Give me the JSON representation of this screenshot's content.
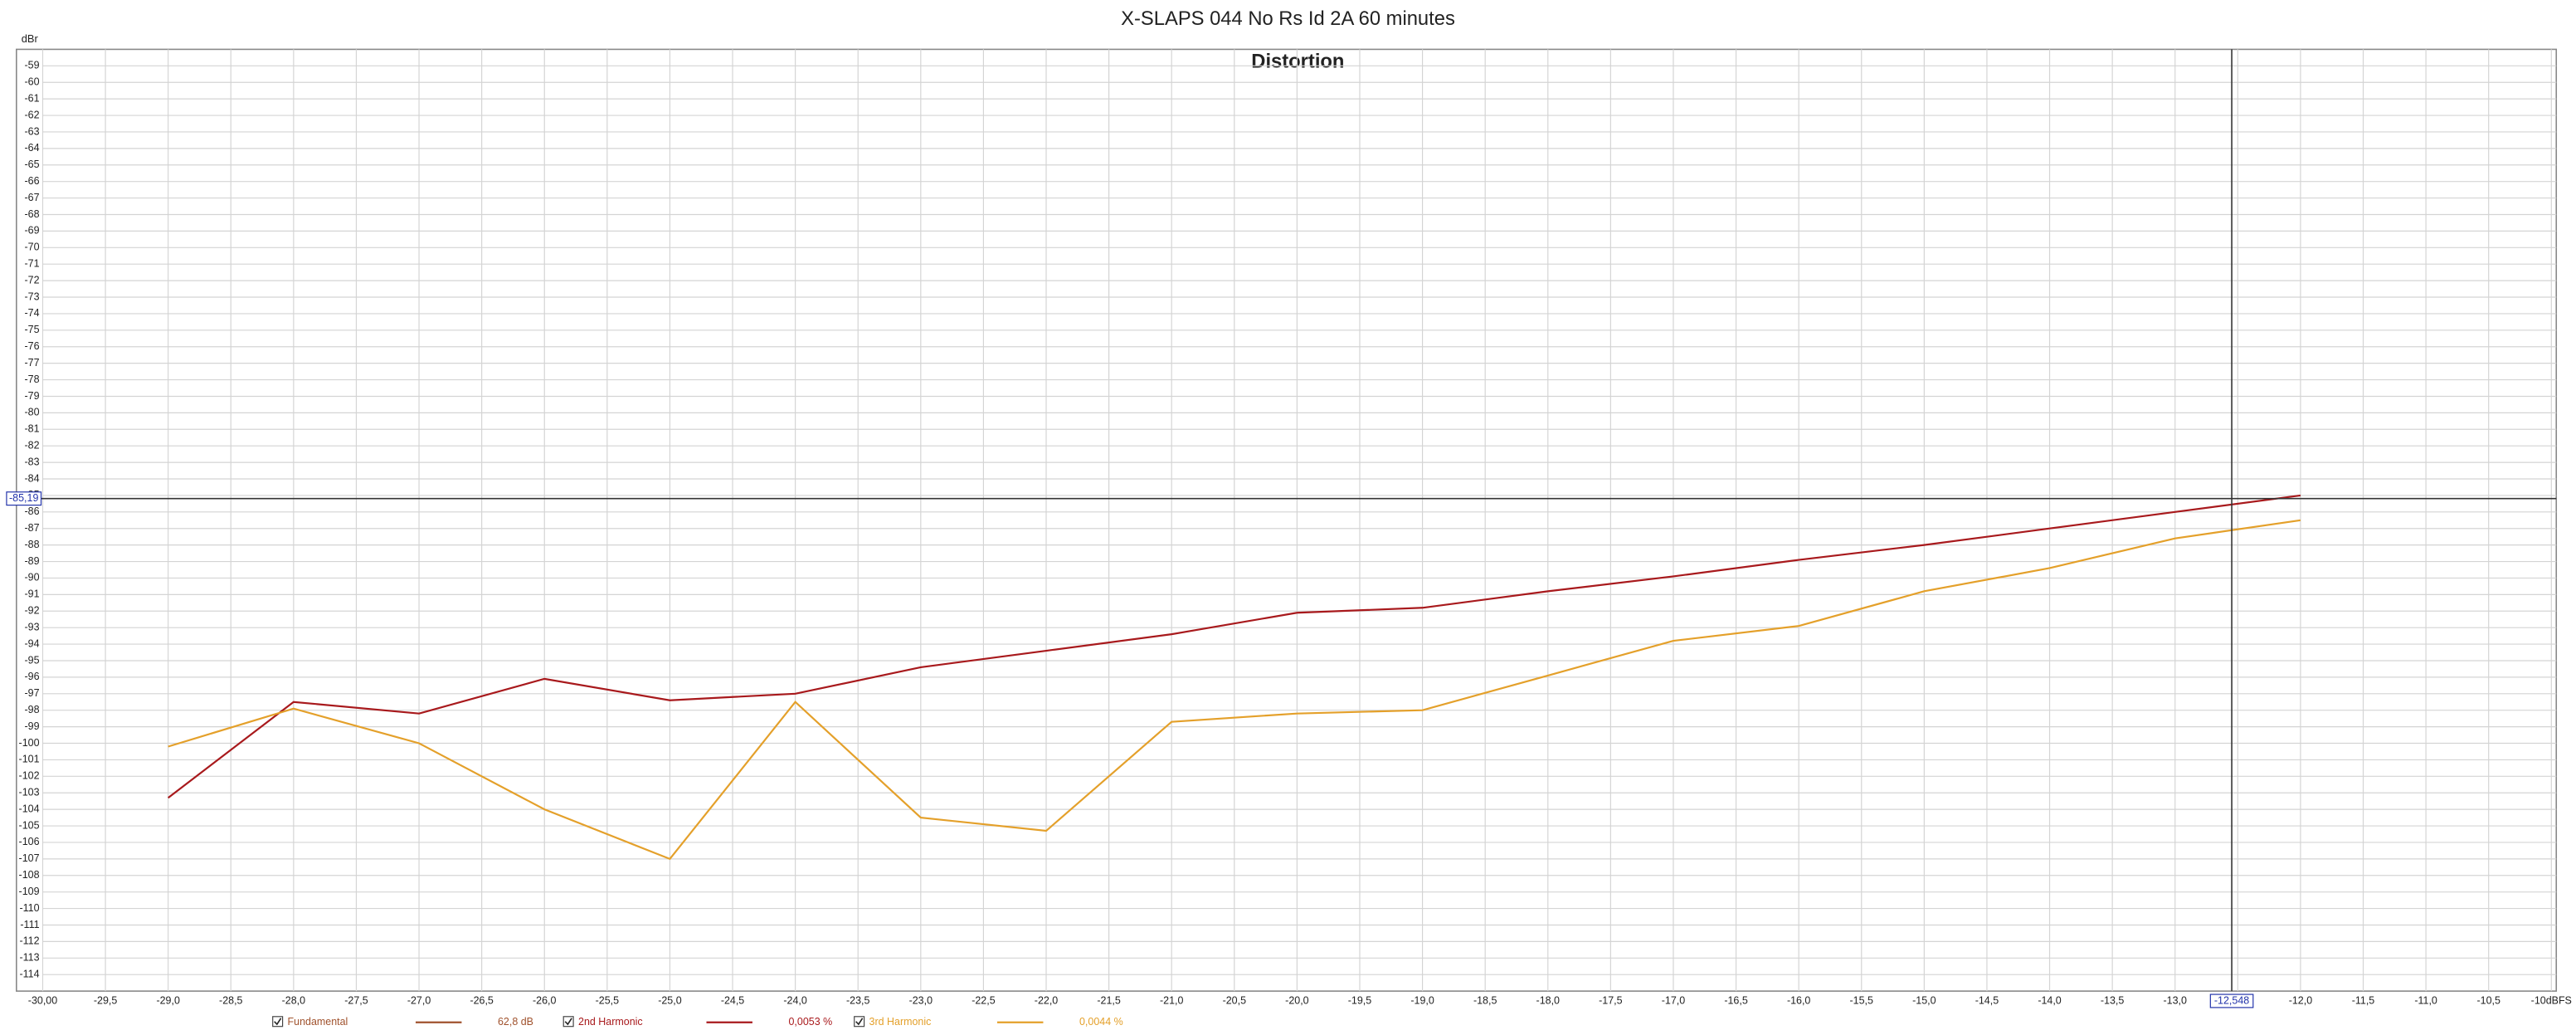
{
  "chart_data": {
    "type": "line",
    "title": "X-SLAPS 044 No Rs Id 2A 60 minutes",
    "subtitle": "Distortion",
    "y_label": "dBr",
    "grid": true,
    "xlim": [
      -30,
      -10
    ],
    "ylim": [
      -115,
      -58
    ],
    "xticks": [
      {
        "value": -30,
        "label": "-30,00"
      },
      {
        "value": -29.5,
        "label": "-29,5"
      },
      {
        "value": -29,
        "label": "-29,0"
      },
      {
        "value": -28.5,
        "label": "-28,5"
      },
      {
        "value": -28,
        "label": "-28,0"
      },
      {
        "value": -27.5,
        "label": "-27,5"
      },
      {
        "value": -27,
        "label": "-27,0"
      },
      {
        "value": -26.5,
        "label": "-26,5"
      },
      {
        "value": -26,
        "label": "-26,0"
      },
      {
        "value": -25.5,
        "label": "-25,5"
      },
      {
        "value": -25,
        "label": "-25,0"
      },
      {
        "value": -24.5,
        "label": "-24,5"
      },
      {
        "value": -24,
        "label": "-24,0"
      },
      {
        "value": -23.5,
        "label": "-23,5"
      },
      {
        "value": -23,
        "label": "-23,0"
      },
      {
        "value": -22.5,
        "label": "-22,5"
      },
      {
        "value": -22,
        "label": "-22,0"
      },
      {
        "value": -21.5,
        "label": "-21,5"
      },
      {
        "value": -21,
        "label": "-21,0"
      },
      {
        "value": -20.5,
        "label": "-20,5"
      },
      {
        "value": -20,
        "label": "-20,0"
      },
      {
        "value": -19.5,
        "label": "-19,5"
      },
      {
        "value": -19,
        "label": "-19,0"
      },
      {
        "value": -18.5,
        "label": "-18,5"
      },
      {
        "value": -18,
        "label": "-18,0"
      },
      {
        "value": -17.5,
        "label": "-17,5"
      },
      {
        "value": -17,
        "label": "-17,0"
      },
      {
        "value": -16.5,
        "label": "-16,5"
      },
      {
        "value": -16,
        "label": "-16,0"
      },
      {
        "value": -15.5,
        "label": "-15,5"
      },
      {
        "value": -15,
        "label": "-15,0"
      },
      {
        "value": -14.5,
        "label": "-14,5"
      },
      {
        "value": -14,
        "label": "-14,0"
      },
      {
        "value": -13.5,
        "label": "-13,5"
      },
      {
        "value": -13,
        "label": "-13,0"
      },
      {
        "value": -12.5,
        "label": "-12,5"
      },
      {
        "value": -12,
        "label": "-12,0"
      },
      {
        "value": -11.5,
        "label": "-11,5"
      },
      {
        "value": -11,
        "label": "-11,0"
      },
      {
        "value": -10.5,
        "label": "-10,5"
      },
      {
        "value": -10,
        "label": "-10dBFS"
      }
    ],
    "yticks": [
      -59,
      -60,
      -61,
      -62,
      -63,
      -64,
      -65,
      -66,
      -67,
      -68,
      -69,
      -70,
      -71,
      -72,
      -73,
      -74,
      -75,
      -76,
      -77,
      -78,
      -79,
      -80,
      -81,
      -82,
      -83,
      -84,
      -85,
      -86,
      -87,
      -88,
      -89,
      -90,
      -91,
      -92,
      -93,
      -94,
      -95,
      -96,
      -97,
      -98,
      -99,
      -100,
      -101,
      -102,
      -103,
      -104,
      -105,
      -106,
      -107,
      -108,
      -109,
      -110,
      -111,
      -112,
      -113,
      -114
    ],
    "x": [
      -29,
      -28,
      -27,
      -26,
      -25,
      -24,
      -23,
      -22,
      -21,
      -20,
      -19,
      -18,
      -17,
      -16,
      -15,
      -14,
      -13,
      -12
    ],
    "series": [
      {
        "name": "Fundamental",
        "color": "#a0522d",
        "readout": "62,8 dB",
        "values": [
          null,
          null,
          null,
          null,
          null,
          null,
          null,
          null,
          null,
          null,
          null,
          null,
          null,
          null,
          null,
          null,
          null,
          null
        ]
      },
      {
        "name": "2nd Harmonic",
        "color": "#a8191c",
        "readout": "0,0053 %",
        "values": [
          -103.3,
          -97.5,
          -98.2,
          -96.1,
          -97.4,
          -97.0,
          -95.4,
          -94.4,
          -93.4,
          -92.1,
          -91.8,
          -90.8,
          -89.9,
          -88.9,
          -88.0,
          -87.0,
          -86.0,
          -85.0
        ]
      },
      {
        "name": "3rd Harmonic",
        "color": "#e4a02a",
        "readout": "0,0044 %",
        "values": [
          -100.2,
          -97.9,
          -100.0,
          -104.0,
          -107.0,
          -97.5,
          -104.5,
          -105.3,
          -98.7,
          -98.2,
          -98.0,
          -95.9,
          -93.8,
          -92.9,
          -90.8,
          -89.4,
          -87.6,
          -86.5
        ]
      }
    ],
    "cursor": {
      "x": {
        "value": -12.548,
        "label": "-12,548"
      },
      "y": {
        "value": -85.19,
        "label": "-85,19"
      }
    }
  }
}
